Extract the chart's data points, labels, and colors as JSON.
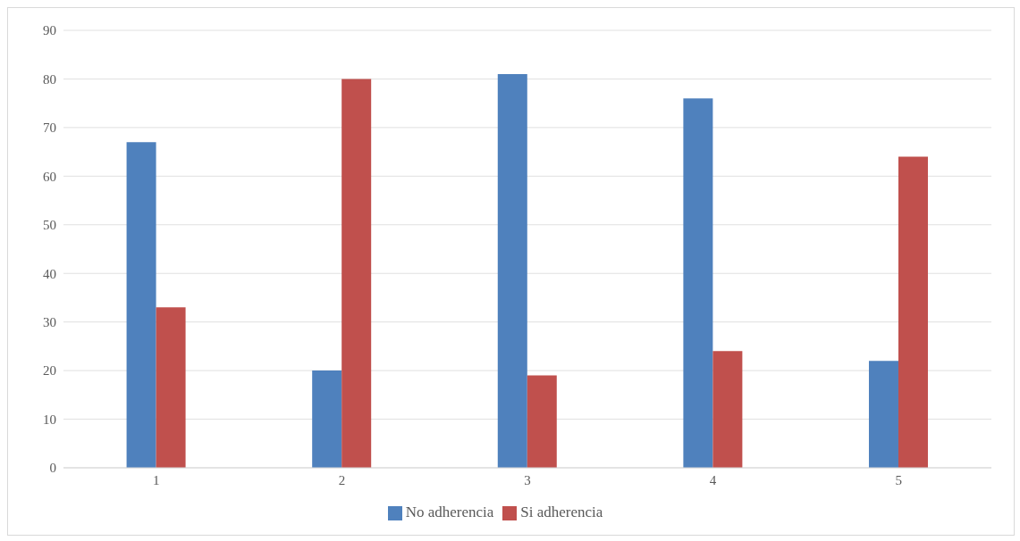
{
  "chart_data": {
    "type": "bar",
    "categories": [
      "1",
      "2",
      "3",
      "4",
      "5"
    ],
    "series": [
      {
        "name": "No adherencia",
        "color": "#4f81bd",
        "values": [
          67,
          20,
          81,
          76,
          22
        ]
      },
      {
        "name": "Si adherencia",
        "color": "#c0504d",
        "values": [
          33,
          80,
          19,
          24,
          64
        ]
      }
    ],
    "ylim": [
      0,
      90
    ],
    "yticks": [
      0,
      10,
      20,
      30,
      40,
      50,
      60,
      70,
      80,
      90
    ],
    "grid": "y",
    "legend": "bottom"
  }
}
